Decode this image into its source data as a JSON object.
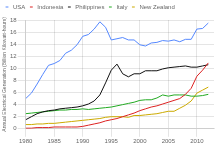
{
  "chart_data": {
    "type": "line",
    "title": "",
    "ylabel": "Annual Electrical Generation (Billion Kilowatt-hours)",
    "x": [
      1980,
      1981,
      1982,
      1983,
      1984,
      1985,
      1986,
      1987,
      1988,
      1989,
      1990,
      1991,
      1992,
      1993,
      1994,
      1995,
      1996,
      1997,
      1998,
      1999,
      2000,
      2001,
      2002,
      2003,
      2004,
      2005,
      2006,
      2007,
      2008,
      2009,
      2010,
      2011,
      2012
    ],
    "series": [
      {
        "name": "USA",
        "color": "#5588ff",
        "values": [
          5.0,
          5.9,
          7.4,
          9.0,
          10.5,
          10.8,
          11.3,
          12.5,
          13.0,
          13.9,
          15.3,
          15.6,
          16.5,
          17.7,
          16.8,
          14.7,
          14.9,
          15.1,
          14.7,
          14.7,
          13.9,
          13.7,
          14.2,
          14.3,
          14.6,
          14.5,
          14.7,
          14.4,
          14.8,
          14.8,
          16.5,
          16.6,
          17.5
        ]
      },
      {
        "name": "Indonesia",
        "color": "#dd2222",
        "values": [
          0.1,
          0.1,
          0.2,
          0.2,
          0.2,
          0.3,
          0.3,
          0.3,
          0.3,
          0.3,
          0.4,
          0.6,
          0.8,
          1.0,
          1.3,
          1.5,
          1.7,
          2.0,
          2.3,
          2.6,
          3.0,
          3.3,
          3.6,
          3.8,
          4.1,
          4.4,
          4.7,
          5.0,
          5.7,
          6.7,
          8.7,
          9.7,
          10.9
        ]
      },
      {
        "name": "Philippines",
        "color": "#111111",
        "values": [
          1.5,
          2.0,
          2.5,
          2.8,
          3.0,
          3.1,
          3.3,
          3.4,
          3.5,
          3.6,
          3.8,
          4.1,
          4.6,
          5.6,
          7.6,
          9.7,
          10.7,
          9.1,
          8.6,
          9.1,
          9.1,
          9.6,
          9.6,
          9.6,
          9.9,
          10.1,
          10.2,
          10.3,
          10.4,
          10.2,
          10.2,
          10.4,
          10.6
        ]
      },
      {
        "name": "Italy",
        "color": "#22aa22",
        "values": [
          2.5,
          2.6,
          2.7,
          2.8,
          2.9,
          3.0,
          3.1,
          3.1,
          3.2,
          3.2,
          3.3,
          3.2,
          3.3,
          3.4,
          3.5,
          3.6,
          3.8,
          4.0,
          4.2,
          4.4,
          4.7,
          4.8,
          4.8,
          5.1,
          5.6,
          5.4,
          5.6,
          5.6,
          5.6,
          5.4,
          5.4,
          5.5,
          5.7
        ]
      },
      {
        "name": "New Zealand",
        "color": "#ccaa00",
        "values": [
          0.7,
          0.7,
          0.8,
          0.8,
          0.9,
          0.9,
          1.0,
          1.1,
          1.2,
          1.3,
          1.4,
          1.5,
          1.6,
          1.7,
          1.9,
          2.0,
          2.0,
          2.0,
          1.9,
          2.2,
          2.2,
          2.3,
          2.4,
          2.5,
          2.7,
          2.9,
          2.9,
          3.4,
          3.9,
          4.6,
          5.9,
          6.4,
          6.9
        ]
      }
    ],
    "xlim": [
      1980,
      2013
    ],
    "xticks": [
      1980,
      1985,
      1990,
      1995,
      2000,
      2005,
      2010
    ],
    "ylim": [
      0,
      18
    ],
    "yticks": [
      0,
      2,
      4,
      6,
      8,
      10,
      12,
      14,
      16,
      18
    ],
    "grid": true,
    "legend": "upper left"
  }
}
